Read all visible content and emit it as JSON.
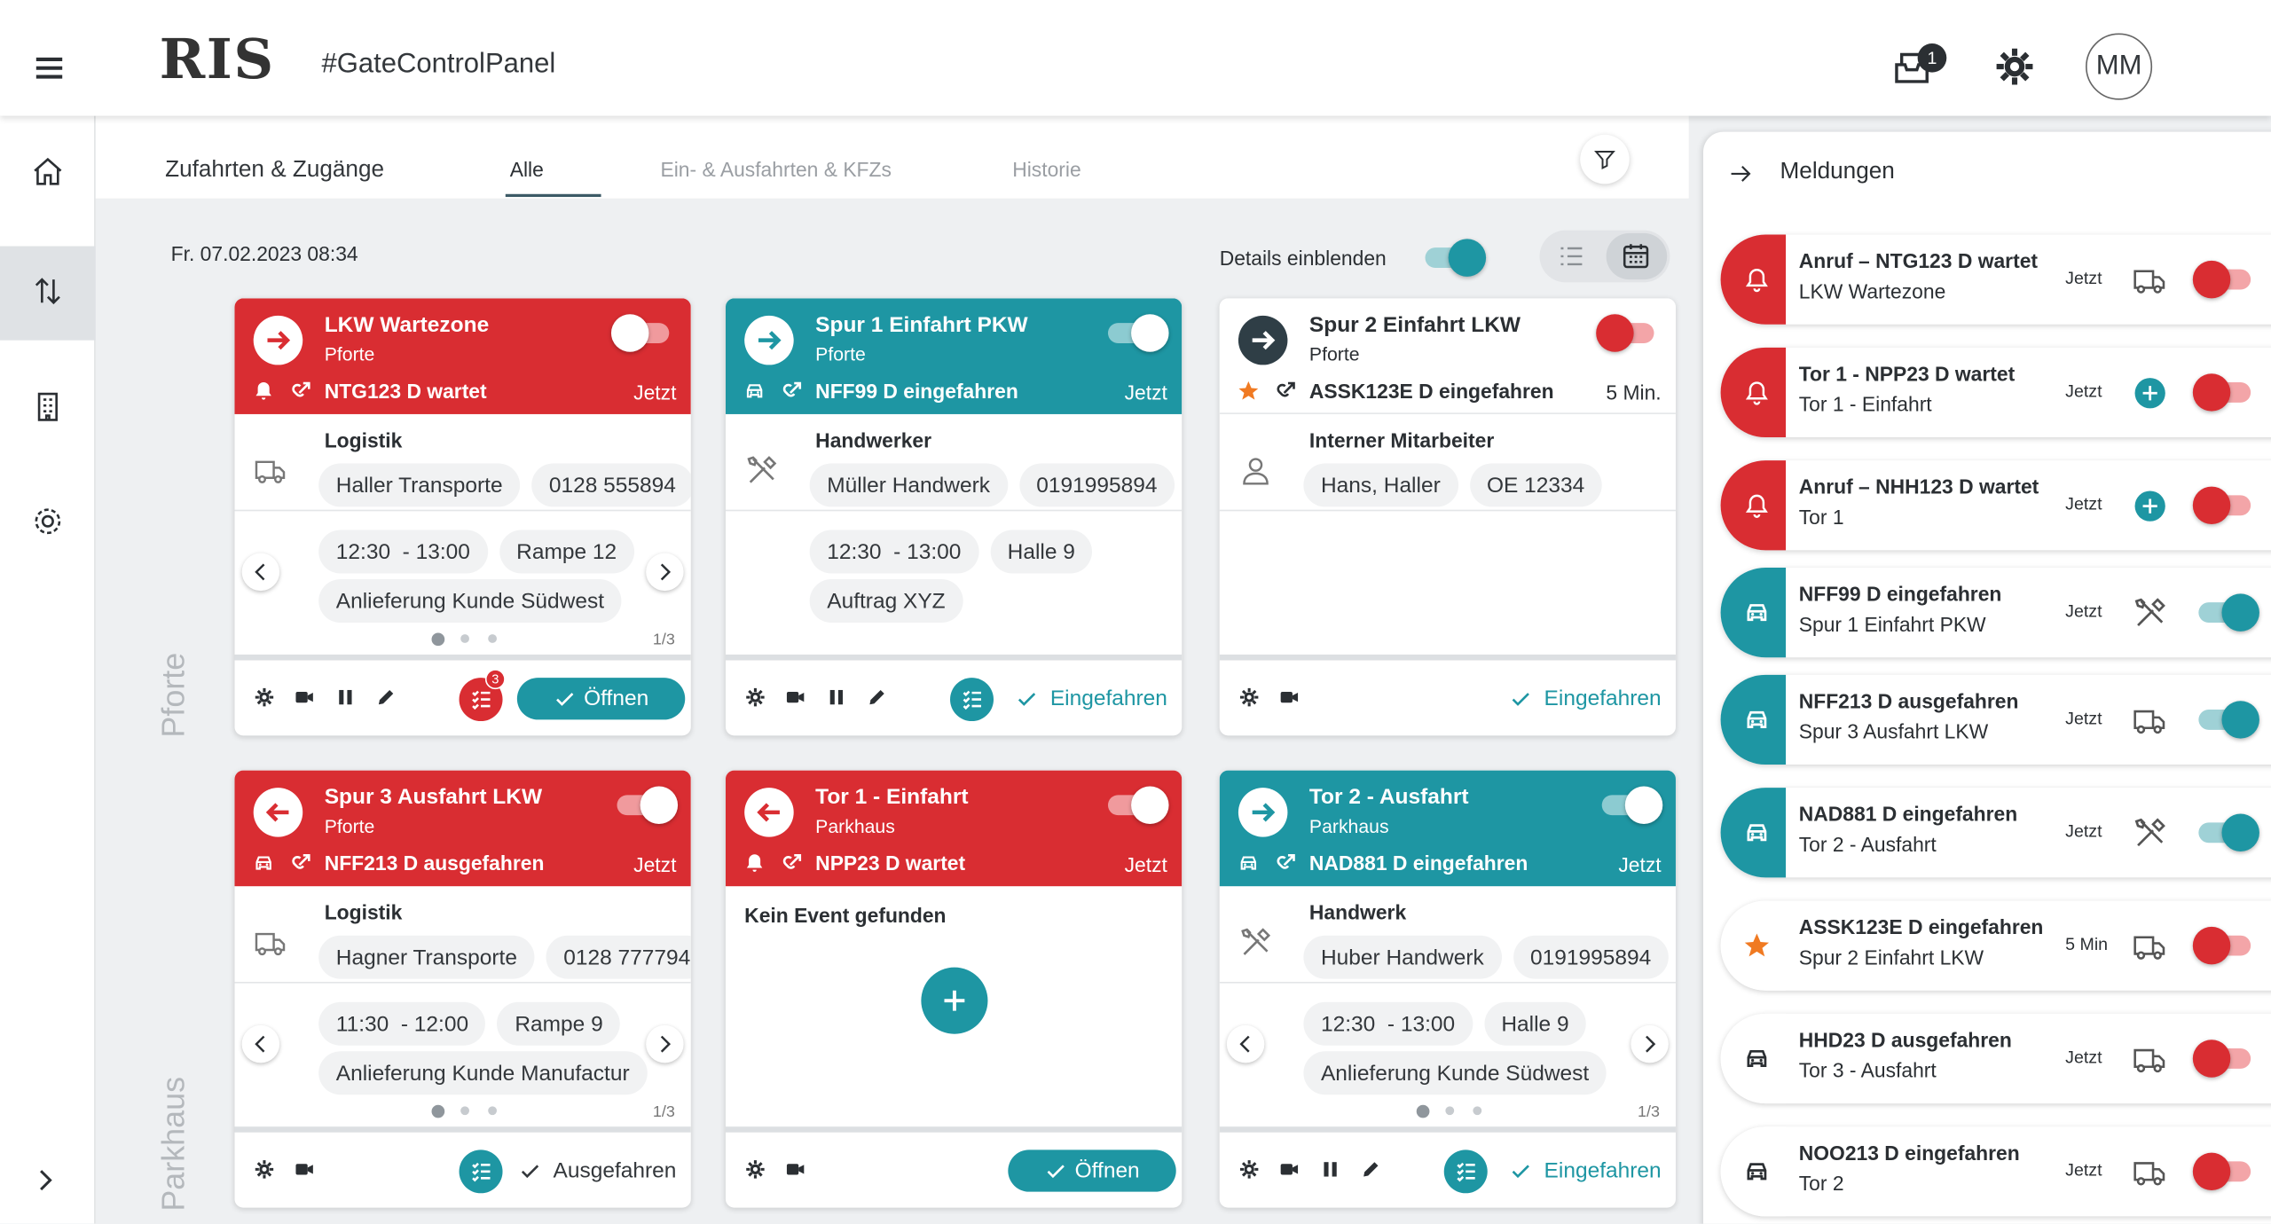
{
  "header": {
    "logo": "RIS",
    "hashtag": "#GateControlPanel",
    "notification_count": "1",
    "avatar": "MM"
  },
  "tabs": {
    "title": "Zufahrten & Zugänge",
    "items": [
      "Alle",
      "Ein- & Ausfahrten & KFZs",
      "Historie"
    ],
    "active": 0
  },
  "toolbar": {
    "date": "Fr. 07.02.2023 08:34",
    "details_label": "Details einblenden",
    "details_on": true
  },
  "sections": [
    "Pforte",
    "Parkhaus"
  ],
  "cards": [
    {
      "color": "#d92d32",
      "direction": "in",
      "title": "LKW Wartezone",
      "subtitle": "Pforte",
      "toggle": false,
      "event_icon": "bell",
      "event": "NTG123 D wartet",
      "time": "Jetzt",
      "category": "Logistik",
      "category_icon": "truck",
      "chips": [
        "Haller Transporte",
        "0128 555894"
      ],
      "slots": [
        "12:30  - 13:00",
        "Rampe 12",
        "Anlieferung Kunde Südwest"
      ],
      "pager": "1/3",
      "actions": 4,
      "list_color": "#d92d32",
      "badge": "3",
      "button": "Öffnen",
      "button_filled": true,
      "button_color": "#1e96a3"
    },
    {
      "color": "#1e96a3",
      "direction": "in",
      "title": "Spur 1 Einfahrt PKW",
      "subtitle": "Pforte",
      "toggle": true,
      "event_icon": "car",
      "event": "NFF99 D eingefahren",
      "time": "Jetzt",
      "category": "Handwerker",
      "category_icon": "tools",
      "chips": [
        "Müller Handwerk",
        "0191995894"
      ],
      "slots": [
        "12:30  - 13:00",
        "Halle 9",
        "Auftrag XYZ"
      ],
      "actions": 4,
      "list_color": "#1e96a3",
      "button": "Eingefahren",
      "button_filled": false,
      "button_color": "#1e96a3"
    },
    {
      "color": "#ffffff",
      "direction": "in",
      "title": "Spur 2 Einfahrt LKW",
      "subtitle": "Pforte",
      "toggle": false,
      "event_icon": "star",
      "event": "ASSK123E D eingefahren",
      "time": "5 Min.",
      "category": "Interner Mitarbeiter",
      "category_icon": "person",
      "chips": [
        "Hans, Haller",
        "OE 12334"
      ],
      "actions": 2,
      "button": "Eingefahren",
      "button_filled": false,
      "button_color": "#1e96a3"
    },
    {
      "color": "#d92d32",
      "direction": "out",
      "title": "Spur 3 Ausfahrt LKW",
      "subtitle": "Pforte",
      "toggle": true,
      "event_icon": "car",
      "event": "NFF213 D ausgefahren",
      "time": "Jetzt",
      "category": "Logistik",
      "category_icon": "truck",
      "chips": [
        "Hagner Transporte",
        "0128 777794"
      ],
      "slots": [
        "11:30  - 12:00",
        "Rampe 9",
        "Anlieferung Kunde Manufactur"
      ],
      "pager": "1/3",
      "actions": 2,
      "list_color": "#1e96a3",
      "button": "Ausgefahren",
      "button_filled": false,
      "button_color": "#33373b"
    },
    {
      "color": "#d92d32",
      "direction": "out",
      "title": "Tor 1 - Einfahrt",
      "subtitle": "Parkhaus",
      "toggle": true,
      "event_icon": "bell",
      "event": "NPP23 D wartet",
      "time": "Jetzt",
      "empty": "Kein Event gefunden",
      "actions": 2,
      "button": "Öffnen",
      "button_filled": true,
      "button_color": "#1e96a3"
    },
    {
      "color": "#1e96a3",
      "direction": "in",
      "title": "Tor 2 - Ausfahrt",
      "subtitle": "Parkhaus",
      "toggle": true,
      "event_icon": "car",
      "event": "NAD881 D eingefahren",
      "time": "Jetzt",
      "category": "Handwerk",
      "category_icon": "tools",
      "chips": [
        "Huber Handwerk",
        "0191995894"
      ],
      "slots": [
        "12:30  - 13:00",
        "Halle 9",
        "Anlieferung Kunde Südwest"
      ],
      "pager": "1/3",
      "actions": 4,
      "list_color": "#1e96a3",
      "button": "Eingefahren",
      "button_filled": false,
      "button_color": "#1e96a3"
    }
  ],
  "panel": {
    "title": "Meldungen"
  },
  "notifications": [
    {
      "color": "#d92d32",
      "icon": "bell",
      "title": "Anruf – NTG123 D wartet",
      "subtitle": "LKW Wartezone",
      "time": "Jetzt",
      "action": "truck",
      "toggle": false
    },
    {
      "color": "#d92d32",
      "icon": "bell",
      "title": "Tor 1 - NPP23 D wartet",
      "subtitle": "Tor 1 - Einfahrt",
      "time": "Jetzt",
      "action": "plus",
      "toggle": false
    },
    {
      "color": "#d92d32",
      "icon": "bell",
      "title": "Anruf – NHH123 D wartet",
      "subtitle": "Tor 1",
      "time": "Jetzt",
      "action": "plus",
      "toggle": false
    },
    {
      "color": "#1e96a3",
      "icon": "car",
      "title": "NFF99 D eingefahren",
      "subtitle": "Spur 1 Einfahrt PKW",
      "time": "Jetzt",
      "action": "tools",
      "toggle": true
    },
    {
      "color": "#1e96a3",
      "icon": "car",
      "title": "NFF213 D ausgefahren",
      "subtitle": "Spur 3 Ausfahrt LKW",
      "time": "Jetzt",
      "action": "truck",
      "toggle": true
    },
    {
      "color": "#1e96a3",
      "icon": "car",
      "title": "NAD881 D eingefahren",
      "subtitle": "Tor 2 - Ausfahrt",
      "time": "Jetzt",
      "action": "tools",
      "toggle": true
    },
    {
      "color": "#ffffff",
      "icon": "star",
      "title": "ASSK123E D eingefahren",
      "subtitle": "Spur 2 Einfahrt LKW",
      "time": "5 Min",
      "action": "truck",
      "toggle": false
    },
    {
      "color": "#ffffff",
      "icon": "car",
      "title": "HHD23 D ausgefahren",
      "subtitle": "Tor 3 - Ausfahrt",
      "time": "Jetzt",
      "action": "truck",
      "toggle": false
    },
    {
      "color": "#ffffff",
      "icon": "car",
      "title": "NOO213 D eingefahren",
      "subtitle": "Tor 2",
      "time": "Jetzt",
      "action": "truck",
      "toggle": false
    }
  ]
}
